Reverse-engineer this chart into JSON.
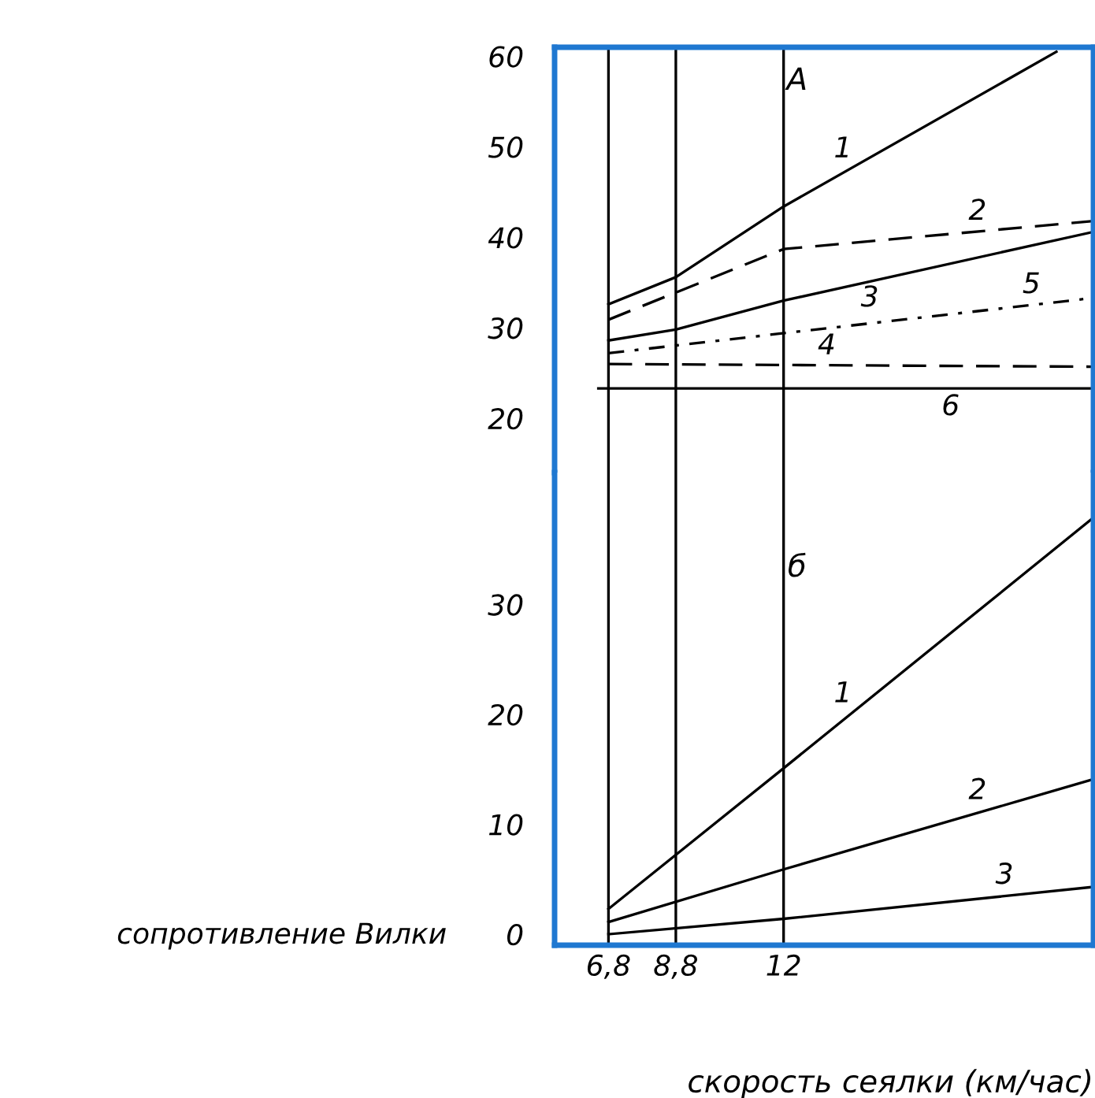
{
  "chart_data": [
    {
      "type": "line",
      "title": "A",
      "xlim": [
        5.2,
        21.2
      ],
      "ylim": [
        14,
        61
      ],
      "yticks": [
        20,
        30,
        40,
        50,
        60
      ],
      "tick_labels": "y",
      "grid": false,
      "legend": false,
      "marker": "none",
      "color": "#1f78d1",
      "ref_lines": [
        {
          "axis": "x",
          "value": 6.8,
          "color": "#000000"
        },
        {
          "axis": "x",
          "value": 8.8,
          "color": "#000000"
        },
        {
          "axis": "x",
          "value": 12,
          "color": "#000000"
        }
      ],
      "series": [
        {
          "name": "1",
          "color": "#000000",
          "line_style": "solid",
          "x": [
            6.8,
            8.8,
            12,
            20.1
          ],
          "values": [
            32.6,
            35.6,
            43.4,
            60.5
          ]
        },
        {
          "name": "2",
          "color": "#000000",
          "line_style": "dashed",
          "x": [
            6.8,
            12,
            21.2
          ],
          "values": [
            30.9,
            38.7,
            41.8
          ]
        },
        {
          "name": "3",
          "color": "#000000",
          "line_style": "solid",
          "x": [
            6.8,
            8.8,
            12,
            21.2
          ],
          "values": [
            28.6,
            29.8,
            33,
            40.6
          ]
        },
        {
          "name": "4",
          "color": "#000000",
          "line_style": "dashed",
          "x": [
            6.8,
            21.2
          ],
          "values": [
            26,
            25.7
          ]
        },
        {
          "name": "5",
          "color": "#000000",
          "line_style": "dotted",
          "x": [
            6.8,
            21.2
          ],
          "values": [
            27.2,
            33.3
          ]
        },
        {
          "name": "6",
          "color": "#000000",
          "line_style": "solid",
          "x": [
            6.5,
            21.2
          ],
          "values": [
            23.3,
            23.3
          ]
        }
      ]
    },
    {
      "type": "line",
      "title": "б",
      "xlabel": "скорость сеялки (км/час)",
      "ylabel": "сопротивление Вилки",
      "xlim": [
        5.2,
        21.2
      ],
      "xticks": [
        {
          "value": 6.8,
          "label": "6,8"
        },
        {
          "value": 8.8,
          "label": "8,8"
        },
        12
      ],
      "ylim": [
        -1,
        42
      ],
      "yticks": [
        0,
        10,
        20,
        30
      ],
      "grid": false,
      "legend": false,
      "marker": "none",
      "color": "#1f78d1",
      "ref_lines": [
        {
          "axis": "x",
          "value": 6.8,
          "color": "#000000"
        },
        {
          "axis": "x",
          "value": 8.8,
          "color": "#000000"
        },
        {
          "axis": "x",
          "value": 12,
          "color": "#000000"
        }
      ],
      "series": [
        {
          "name": "1",
          "color": "#000000",
          "line_style": "solid",
          "x": [
            6.8,
            12,
            21.2
          ],
          "values": [
            2.3,
            15.1,
            37.9
          ]
        },
        {
          "name": "2",
          "color": "#000000",
          "line_style": "solid",
          "x": [
            6.8,
            12,
            21.2
          ],
          "values": [
            1.1,
            5.9,
            14.1
          ]
        },
        {
          "name": "3",
          "color": "#000000",
          "line_style": "solid",
          "x": [
            6.8,
            12,
            21.2
          ],
          "values": [
            0,
            1.4,
            4.3
          ]
        }
      ]
    }
  ]
}
